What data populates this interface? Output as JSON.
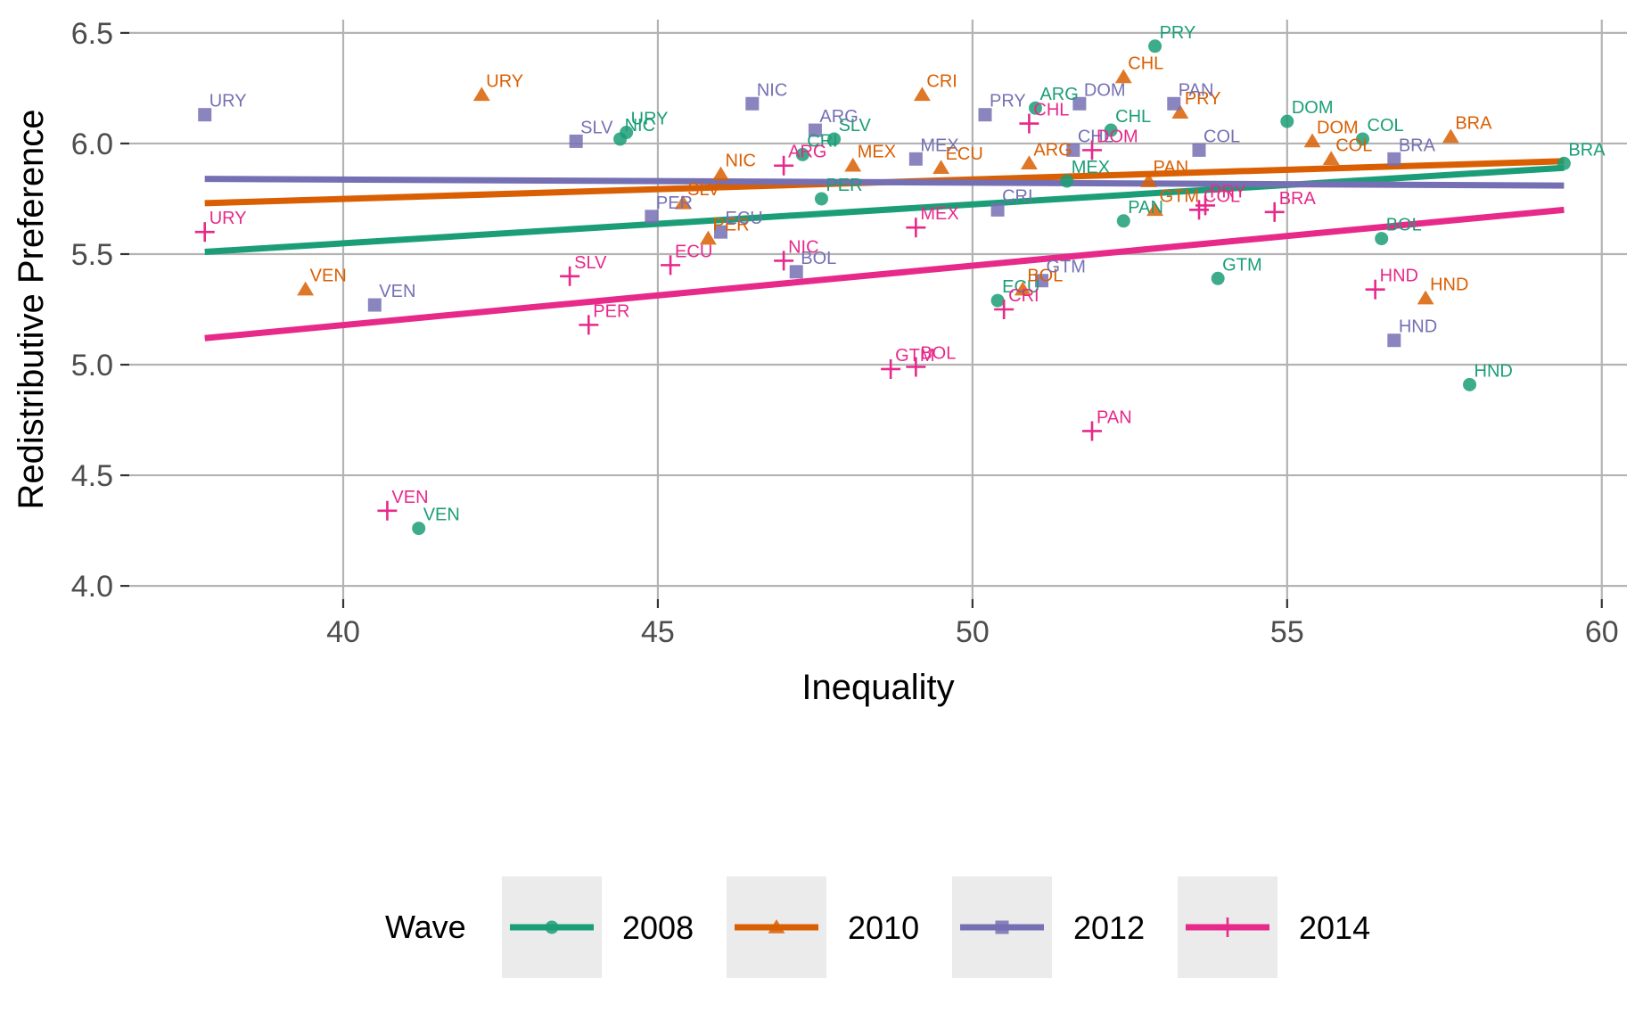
{
  "chart_data": {
    "type": "scatter",
    "xlabel": "Inequality",
    "ylabel": "Redistributive Preference",
    "xlim": [
      36.6,
      60.4
    ],
    "ylim": [
      3.94,
      6.56
    ],
    "x_ticks": [
      40,
      45,
      50,
      55,
      60
    ],
    "y_ticks": [
      4.0,
      4.5,
      5.0,
      5.5,
      6.0,
      6.5
    ],
    "y_tick_labels": [
      "4.0",
      "4.5",
      "5.0",
      "5.5",
      "6.0",
      "6.5"
    ],
    "grid": true,
    "legend": {
      "title": "Wave",
      "position": "bottom"
    },
    "series": [
      {
        "name": "2008",
        "color": "#1b9e77",
        "marker": "circle",
        "fit": {
          "x": [
            37.8,
            59.4
          ],
          "y": [
            5.51,
            5.89
          ]
        },
        "points": [
          {
            "label": "PRY",
            "x": 52.9,
            "y": 6.44
          },
          {
            "label": "ARG",
            "x": 51.0,
            "y": 6.16
          },
          {
            "label": "CHL",
            "x": 52.2,
            "y": 6.06
          },
          {
            "label": "DOM",
            "x": 55.0,
            "y": 6.1
          },
          {
            "label": "COL",
            "x": 56.2,
            "y": 6.02
          },
          {
            "label": "BRA",
            "x": 59.4,
            "y": 5.91
          },
          {
            "label": "URY",
            "x": 44.5,
            "y": 6.05
          },
          {
            "label": "NIC",
            "x": 44.4,
            "y": 6.02
          },
          {
            "label": "SLV",
            "x": 47.8,
            "y": 6.02
          },
          {
            "label": "CRI",
            "x": 47.3,
            "y": 5.95
          },
          {
            "label": "PER",
            "x": 47.6,
            "y": 5.75
          },
          {
            "label": "MEX",
            "x": 51.5,
            "y": 5.83
          },
          {
            "label": "PAN",
            "x": 52.4,
            "y": 5.65
          },
          {
            "label": "BOL",
            "x": 56.5,
            "y": 5.57
          },
          {
            "label": "GTM",
            "x": 53.9,
            "y": 5.39
          },
          {
            "label": "ECU",
            "x": 50.4,
            "y": 5.29
          },
          {
            "label": "HND",
            "x": 57.9,
            "y": 4.91
          },
          {
            "label": "VEN",
            "x": 41.2,
            "y": 4.26
          }
        ]
      },
      {
        "name": "2010",
        "color": "#d95f02",
        "marker": "triangle",
        "fit": {
          "x": [
            37.8,
            59.4
          ],
          "y": [
            5.73,
            5.92
          ]
        },
        "points": [
          {
            "label": "URY",
            "x": 42.2,
            "y": 6.22
          },
          {
            "label": "CRI",
            "x": 49.2,
            "y": 6.22
          },
          {
            "label": "CHL",
            "x": 52.4,
            "y": 6.3
          },
          {
            "label": "PRY",
            "x": 53.3,
            "y": 6.14
          },
          {
            "label": "DOM",
            "x": 55.4,
            "y": 6.01
          },
          {
            "label": "BRA",
            "x": 57.6,
            "y": 6.03
          },
          {
            "label": "COL",
            "x": 55.7,
            "y": 5.93
          },
          {
            "label": "MEX",
            "x": 48.1,
            "y": 5.9
          },
          {
            "label": "ECU",
            "x": 49.5,
            "y": 5.89
          },
          {
            "label": "ARG",
            "x": 50.9,
            "y": 5.91
          },
          {
            "label": "NIC",
            "x": 46.0,
            "y": 5.86
          },
          {
            "label": "PAN",
            "x": 52.8,
            "y": 5.83
          },
          {
            "label": "SLV",
            "x": 45.4,
            "y": 5.73
          },
          {
            "label": "GTM",
            "x": 52.9,
            "y": 5.7
          },
          {
            "label": "PER",
            "x": 45.8,
            "y": 5.57
          },
          {
            "label": "BOL",
            "x": 50.8,
            "y": 5.34
          },
          {
            "label": "VEN",
            "x": 39.4,
            "y": 5.34
          },
          {
            "label": "HND",
            "x": 57.2,
            "y": 5.3
          }
        ]
      },
      {
        "name": "2012",
        "color": "#7570b3",
        "marker": "square",
        "fit": {
          "x": [
            37.8,
            59.4
          ],
          "y": [
            5.84,
            5.81
          ]
        },
        "points": [
          {
            "label": "URY",
            "x": 37.8,
            "y": 6.13
          },
          {
            "label": "NIC",
            "x": 46.5,
            "y": 6.18
          },
          {
            "label": "PRY",
            "x": 50.2,
            "y": 6.13
          },
          {
            "label": "DOM",
            "x": 51.7,
            "y": 6.18
          },
          {
            "label": "PAN",
            "x": 53.2,
            "y": 6.18
          },
          {
            "label": "SLV",
            "x": 43.7,
            "y": 6.01
          },
          {
            "label": "ARG",
            "x": 47.5,
            "y": 6.06
          },
          {
            "label": "MEX",
            "x": 49.1,
            "y": 5.93
          },
          {
            "label": "COL",
            "x": 53.6,
            "y": 5.97
          },
          {
            "label": "BRA",
            "x": 56.7,
            "y": 5.93
          },
          {
            "label": "CHL",
            "x": 51.6,
            "y": 5.97
          },
          {
            "label": "CRI",
            "x": 50.4,
            "y": 5.7
          },
          {
            "label": "PER",
            "x": 44.9,
            "y": 5.67
          },
          {
            "label": "ECU",
            "x": 46.0,
            "y": 5.6
          },
          {
            "label": "BOL",
            "x": 47.2,
            "y": 5.42
          },
          {
            "label": "GTM",
            "x": 51.1,
            "y": 5.38
          },
          {
            "label": "VEN",
            "x": 40.5,
            "y": 5.27
          },
          {
            "label": "HND",
            "x": 56.7,
            "y": 5.11
          }
        ]
      },
      {
        "name": "2014",
        "color": "#e7298a",
        "marker": "plus",
        "fit": {
          "x": [
            37.8,
            59.4
          ],
          "y": [
            5.12,
            5.7
          ]
        },
        "points": [
          {
            "label": "CHL",
            "x": 50.9,
            "y": 6.09
          },
          {
            "label": "ARG",
            "x": 47.0,
            "y": 5.9
          },
          {
            "label": "DOM",
            "x": 51.9,
            "y": 5.97
          },
          {
            "label": "URY",
            "x": 37.8,
            "y": 5.6
          },
          {
            "label": "COL",
            "x": 53.6,
            "y": 5.7
          },
          {
            "label": "PRY",
            "x": 53.7,
            "y": 5.72
          },
          {
            "label": "BRA",
            "x": 54.8,
            "y": 5.69
          },
          {
            "label": "MEX",
            "x": 49.1,
            "y": 5.62
          },
          {
            "label": "NIC",
            "x": 47.0,
            "y": 5.47
          },
          {
            "label": "ECU",
            "x": 45.2,
            "y": 5.45
          },
          {
            "label": "SLV",
            "x": 43.6,
            "y": 5.4
          },
          {
            "label": "HND",
            "x": 56.4,
            "y": 5.34
          },
          {
            "label": "CRI",
            "x": 50.5,
            "y": 5.25
          },
          {
            "label": "PER",
            "x": 43.9,
            "y": 5.18
          },
          {
            "label": "GTM",
            "x": 48.7,
            "y": 4.98
          },
          {
            "label": "BOL",
            "x": 49.1,
            "y": 4.99
          },
          {
            "label": "PAN",
            "x": 51.9,
            "y": 4.7
          },
          {
            "label": "VEN",
            "x": 40.7,
            "y": 4.34
          }
        ]
      }
    ]
  }
}
